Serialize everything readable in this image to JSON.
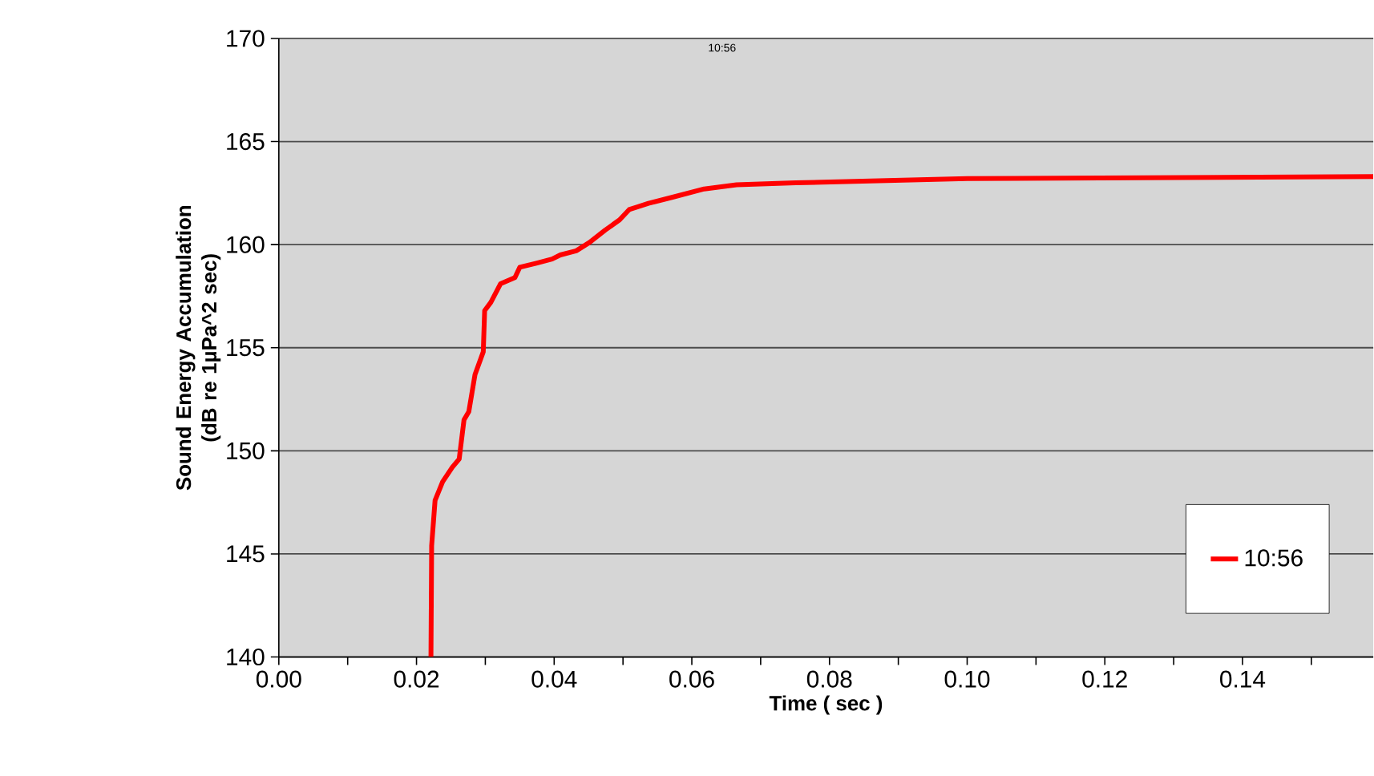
{
  "chart_data": {
    "type": "line",
    "title": "10:56",
    "xlabel": "Time ( sec )",
    "ylabel": "Sound Energy Accumulation (dB re 1µPa^2 sec)",
    "series": [
      {
        "name": "10:56",
        "color": "#ff0000",
        "x": [
          0.0221,
          0.0222,
          0.0227,
          0.0238,
          0.0252,
          0.0262,
          0.0269,
          0.0276,
          0.0285,
          0.0297,
          0.0299,
          0.0308,
          0.0322,
          0.0343,
          0.035,
          0.0374,
          0.0397,
          0.0409,
          0.0432,
          0.0451,
          0.0474,
          0.0495,
          0.0509,
          0.0537,
          0.0572,
          0.0618,
          0.0665,
          0.0751,
          0.1,
          0.159
        ],
        "values": [
          140,
          145.4,
          147.6,
          148.5,
          149.2,
          149.6,
          151.5,
          151.9,
          153.7,
          154.8,
          156.8,
          157.2,
          158.1,
          158.4,
          158.9,
          159.1,
          159.3,
          159.5,
          159.7,
          160.1,
          160.7,
          161.2,
          161.7,
          162.0,
          162.3,
          162.7,
          162.9,
          163.0,
          163.2,
          163.3
        ]
      }
    ],
    "xlim": [
      0,
      0.159
    ],
    "xticks": [
      {
        "value": 0,
        "label": "0.00"
      },
      {
        "value": 0.01,
        "label": null
      },
      {
        "value": 0.02,
        "label": "0.02"
      },
      {
        "value": 0.03,
        "label": null
      },
      {
        "value": 0.04,
        "label": "0.04"
      },
      {
        "value": 0.05,
        "label": null
      },
      {
        "value": 0.06,
        "label": "0.06"
      },
      {
        "value": 0.07,
        "label": null
      },
      {
        "value": 0.08,
        "label": "0.08"
      },
      {
        "value": 0.09,
        "label": null
      },
      {
        "value": 0.1,
        "label": "0.10"
      },
      {
        "value": 0.11,
        "label": null
      },
      {
        "value": 0.12,
        "label": "0.12"
      },
      {
        "value": 0.13,
        "label": null
      },
      {
        "value": 0.14,
        "label": "0.14"
      },
      {
        "value": 0.15,
        "label": null
      }
    ],
    "ylim": [
      140,
      170
    ],
    "yticks": [
      140,
      145,
      150,
      155,
      160,
      165,
      170
    ],
    "grid": "y",
    "legend": "bottom right",
    "marker": "none",
    "line_style": "solid"
  }
}
